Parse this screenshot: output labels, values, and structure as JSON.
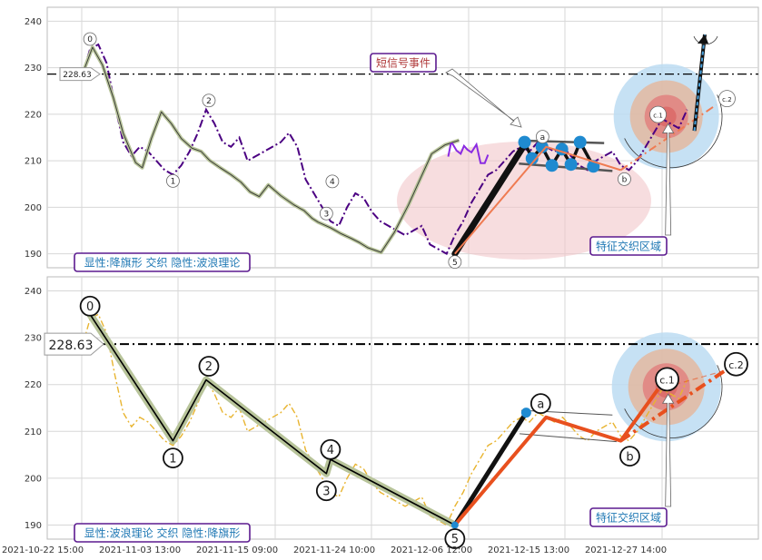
{
  "chart_data": [
    {
      "type": "line",
      "panel": "top",
      "ylim": [
        187,
        243
      ],
      "yticks": [
        190,
        200,
        210,
        220,
        230,
        240
      ],
      "grid": true,
      "price_series": {
        "color": "#4b0082",
        "style": "dash-dot",
        "x": [
          0.2,
          1,
          2,
          3,
          4,
          5,
          6,
          7,
          8,
          9,
          10,
          11,
          12,
          13,
          14,
          15,
          16,
          17,
          18,
          19,
          20,
          21,
          22,
          23,
          24,
          25,
          26,
          27,
          28,
          29,
          30,
          31,
          32,
          33,
          34,
          35,
          36,
          37,
          38,
          39,
          40,
          41,
          42,
          43,
          44,
          45,
          46,
          47,
          48,
          49,
          50,
          51,
          52,
          53,
          54,
          55,
          56,
          57,
          58,
          59,
          60,
          61,
          62,
          63,
          64,
          65,
          66,
          67,
          68,
          69,
          70,
          71,
          72,
          73
        ],
        "y": [
          229,
          234,
          235,
          231,
          222,
          214,
          211,
          213,
          212,
          210,
          208,
          207,
          209,
          212,
          216,
          221,
          218,
          214,
          213,
          215,
          210,
          211,
          212,
          213,
          214,
          216,
          213,
          206,
          203,
          200,
          197,
          196,
          200,
          203,
          202,
          199,
          197,
          196,
          195,
          194,
          195,
          196,
          192,
          191,
          190,
          194,
          197,
          201,
          204,
          207,
          208,
          210,
          212,
          213,
          212,
          214,
          213,
          212,
          213,
          211,
          209,
          208,
          210,
          211,
          212,
          209,
          208,
          210,
          213,
          216,
          219,
          218,
          217,
          221
        ]
      },
      "wave_waypoints": {
        "x": [
          0.2,
          1.3,
          2.5,
          3.8,
          5.0,
          6.5,
          7.3,
          8.4,
          9.6,
          10.8,
          12.0,
          13.3,
          14.4,
          15.4,
          16.7,
          18.0,
          19.2,
          20.3,
          21.4,
          22.5,
          24.0,
          25.6,
          26.8,
          27.8,
          28.5,
          30.0,
          31.3,
          32.5,
          33.5,
          34.5,
          36.1,
          37.7,
          39.4,
          40.9,
          42.2,
          43.8,
          45.5
        ],
        "y": [
          229.2,
          234.4,
          230.6,
          223.6,
          215.9,
          209.6,
          208.5,
          214.8,
          220.5,
          218.0,
          214.8,
          212.7,
          212.0,
          210.1,
          208.5,
          207.0,
          205.4,
          203.3,
          202.3,
          204.8,
          202.5,
          200.5,
          199.3,
          197.6,
          196.8,
          195.6,
          194.3,
          193.3,
          192.4,
          191.3,
          190.3,
          194.6,
          200.5,
          206.4,
          211.5,
          213.4,
          214.4
        ]
      },
      "fill_series": {
        "color": "#8a2be2",
        "x": [
          44.2,
          44.5,
          44.7,
          45.2,
          45.7,
          46.1,
          46.5,
          47.0,
          47.6,
          48.1,
          48.6,
          49.0
        ],
        "y": [
          210.9,
          213.6,
          213.7,
          212.2,
          211.5,
          213.2,
          212.4,
          211.8,
          213.5,
          209.5,
          209.5,
          211.3
        ]
      },
      "wave_points": [
        {
          "label": "0",
          "x": 1,
          "y": 235
        },
        {
          "label": "1",
          "x": 11,
          "y": 208
        },
        {
          "label": "2",
          "x": 15,
          "y": 221
        },
        {
          "label": "3",
          "x": 29.5,
          "y": 201
        },
        {
          "label": "4",
          "x": 30,
          "y": 204
        },
        {
          "label": "5",
          "x": 45,
          "y": 190
        }
      ],
      "abc_points": [
        {
          "label": "a",
          "x": 53.6,
          "y": 214
        },
        {
          "label": "b",
          "x": 65,
          "y": 208
        },
        {
          "label": "c.1",
          "x": 69.5,
          "y": 218
        },
        {
          "label": "c.2",
          "x": 76.5,
          "y": 222
        }
      ],
      "flag_markers": {
        "x": [
          53.4,
          54.3,
          55.5,
          56.7,
          57.9,
          59.0,
          60.1,
          61.7
        ],
        "y": [
          214,
          210.5,
          213,
          209,
          212.5,
          209.2,
          214,
          208.8
        ]
      },
      "reference_line": {
        "value": 228.63,
        "label": "228.63",
        "style": "dash-dot",
        "color": "#000000"
      },
      "annotations": {
        "signal_box": "短信号事件",
        "feature_box": "特征交织区域",
        "panel_label": "显性:降旗形 交织 隐性:波浪理论"
      }
    },
    {
      "type": "line",
      "panel": "bottom",
      "ylim": [
        187,
        243
      ],
      "yticks": [
        190,
        200,
        210,
        220,
        230,
        240
      ],
      "xticks": [
        "2021-10-22 15:00",
        "2021-11-03 13:00",
        "2021-11-15 09:00",
        "2021-11-24 10:00",
        "2021-12-06 12:00",
        "2021-12-15 13:00",
        "2021-12-27 14:00"
      ],
      "grid": true,
      "price_series": {
        "color": "#e8b430",
        "style": "dash-dot",
        "x": [
          0.2,
          1,
          2,
          3,
          4,
          5,
          6,
          7,
          8,
          9,
          10,
          11,
          12,
          13,
          14,
          15,
          16,
          17,
          18,
          19,
          20,
          21,
          22,
          23,
          24,
          25,
          26,
          27,
          28,
          29,
          30,
          31,
          32,
          33,
          34,
          35,
          36,
          37,
          38,
          39,
          40,
          41,
          42,
          43,
          44,
          45,
          46,
          47,
          48,
          49,
          50,
          51,
          52,
          53,
          54,
          55,
          56,
          57,
          58,
          59,
          60,
          61,
          62,
          63,
          64,
          65,
          66,
          67,
          68,
          69,
          70,
          71,
          72,
          73
        ],
        "y": [
          229,
          234,
          235,
          231,
          222,
          214,
          211,
          213,
          212,
          210,
          208,
          207,
          209,
          212,
          216,
          221,
          218,
          214,
          213,
          215,
          210,
          211,
          212,
          213,
          214,
          216,
          213,
          206,
          203,
          200,
          197,
          196,
          200,
          203,
          202,
          199,
          197,
          196,
          195,
          194,
          195,
          196,
          192,
          191,
          190,
          194,
          197,
          201,
          204,
          207,
          208,
          210,
          212,
          213,
          212,
          214,
          213,
          212,
          213,
          211,
          209,
          208,
          210,
          211,
          212,
          209,
          208,
          210,
          213,
          216,
          219,
          218,
          217,
          221
        ]
      },
      "wave_points": [
        {
          "label": "0",
          "x": 1,
          "y": 235
        },
        {
          "label": "1",
          "x": 11,
          "y": 208
        },
        {
          "label": "2",
          "x": 15,
          "y": 221
        },
        {
          "label": "3",
          "x": 29.5,
          "y": 201
        },
        {
          "label": "4",
          "x": 30,
          "y": 204
        },
        {
          "label": "5",
          "x": 45,
          "y": 190
        }
      ],
      "abc_points": [
        {
          "label": "a",
          "x": 53.6,
          "y": 214
        },
        {
          "label": "b",
          "x": 65,
          "y": 208
        },
        {
          "label": "c.1",
          "x": 69.5,
          "y": 219
        },
        {
          "label": "c.2",
          "x": 77.6,
          "y": 223
        }
      ],
      "reference_line": {
        "value": 228.63,
        "label": "228.63",
        "style": "dash-dot",
        "color": "#000000"
      },
      "annotations": {
        "feature_box": "特征交织区域",
        "panel_label": "显性:波浪理论 交织 隐性:降旗形"
      }
    }
  ],
  "colors": {
    "wave_outline": "#b8c49a",
    "wave_line": "#000000",
    "abc_top": "#ef7b52",
    "abc_bottom": "#e8501e",
    "marker": "#1f8ad0",
    "box_border": "#5b1a8f",
    "label_text": "#1f78b4",
    "signal_text": "#b03a3a",
    "ellipse": "#f2c6c9",
    "zone_outer": "#bcdcf2",
    "zone_mid": "#e3b8a0",
    "zone_inner": "#e27a7a"
  }
}
